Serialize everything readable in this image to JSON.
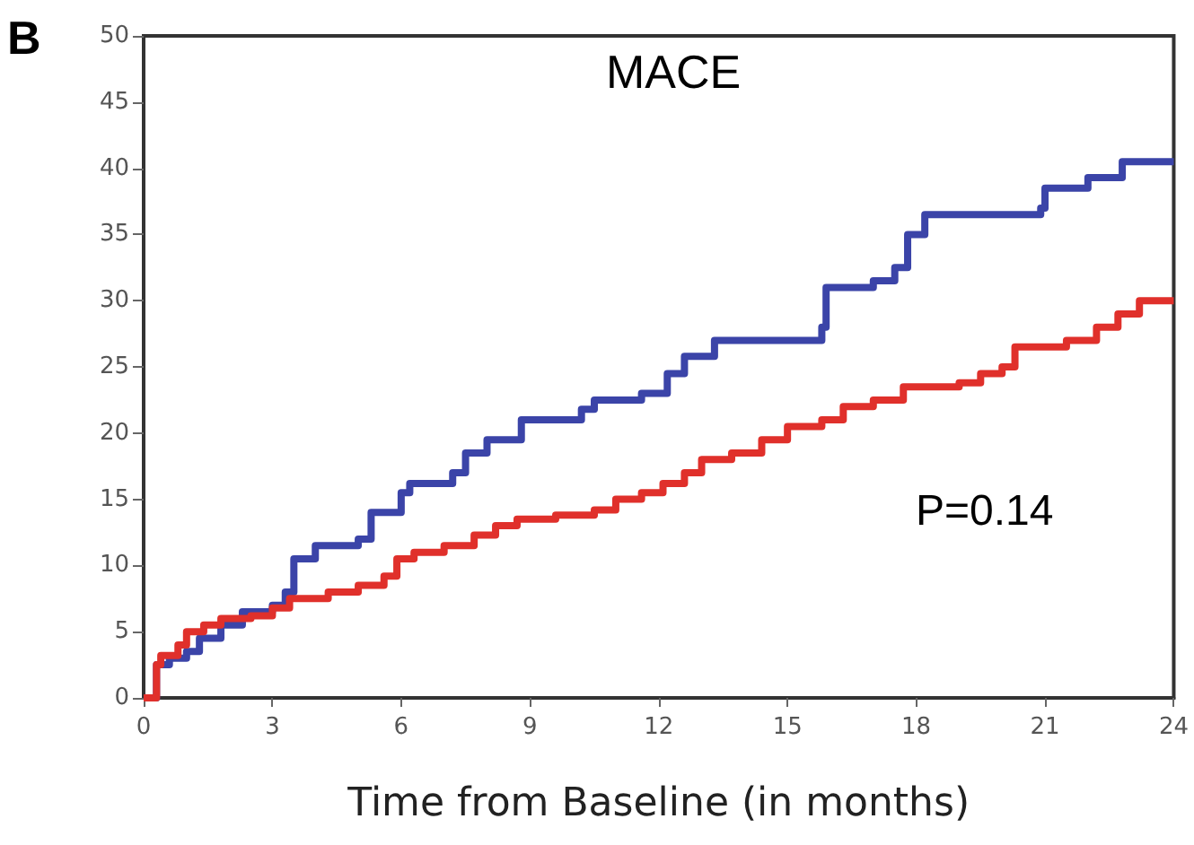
{
  "chart_data": {
    "type": "step",
    "title": "MACE",
    "xlabel": "Time from Baseline (in months)",
    "annotations": [
      "B",
      "P=0.14"
    ],
    "xlim": [
      0,
      24
    ],
    "xticks": [
      0,
      3,
      6,
      9,
      12,
      15,
      18,
      21,
      24
    ],
    "ylim": [
      0,
      50
    ],
    "yticks": [
      0,
      5,
      10,
      15,
      20,
      25,
      30,
      35,
      40,
      45,
      50
    ],
    "grid": false,
    "marker": "none",
    "line_style": "solid",
    "series": [
      {
        "color": "#3b44a8",
        "x": [
          0,
          0.3,
          0.6,
          1.0,
          1.3,
          1.8,
          2.3,
          3.0,
          3.3,
          3.5,
          4.0,
          5.0,
          5.3,
          6.0,
          6.2,
          7.2,
          7.5,
          8.0,
          8.8,
          10.2,
          10.5,
          11.6,
          12.2,
          12.6,
          13.3,
          15.8,
          15.9,
          17.0,
          17.5,
          17.8,
          18.2,
          20.9,
          21.0,
          22.0,
          22.8,
          24
        ],
        "values": [
          0,
          2.5,
          3,
          3.5,
          4.5,
          5.5,
          6.5,
          7,
          8,
          10.5,
          11.5,
          12,
          14,
          15.5,
          16.2,
          17,
          18.5,
          19.5,
          21,
          21.8,
          22.5,
          23,
          24.5,
          25.8,
          27,
          28,
          31,
          31.5,
          32.5,
          35,
          36.5,
          37,
          38.5,
          39.3,
          40.5,
          40.5
        ]
      },
      {
        "color": "#e0302b",
        "x": [
          0,
          0.3,
          0.4,
          0.8,
          1.0,
          1.4,
          1.8,
          2.5,
          3.0,
          3.4,
          4.3,
          5.0,
          5.6,
          5.9,
          6.3,
          7.0,
          7.7,
          8.2,
          8.7,
          9.6,
          10.5,
          11.0,
          11.6,
          12.1,
          12.6,
          13.0,
          13.7,
          14.4,
          15.0,
          15.8,
          16.3,
          17.0,
          17.7,
          19.0,
          19.5,
          20.0,
          20.3,
          21.5,
          22.2,
          22.7,
          23.2,
          24
        ],
        "values": [
          0,
          2.5,
          3.2,
          4,
          5,
          5.5,
          6,
          6.2,
          6.8,
          7.5,
          8,
          8.5,
          9.2,
          10.5,
          11,
          11.5,
          12.3,
          13,
          13.5,
          13.8,
          14.2,
          15,
          15.5,
          16.2,
          17,
          18,
          18.5,
          19.5,
          20.5,
          21,
          22,
          22.5,
          23.5,
          23.8,
          24.5,
          25,
          26.5,
          27,
          28,
          29,
          30,
          30
        ]
      }
    ]
  }
}
